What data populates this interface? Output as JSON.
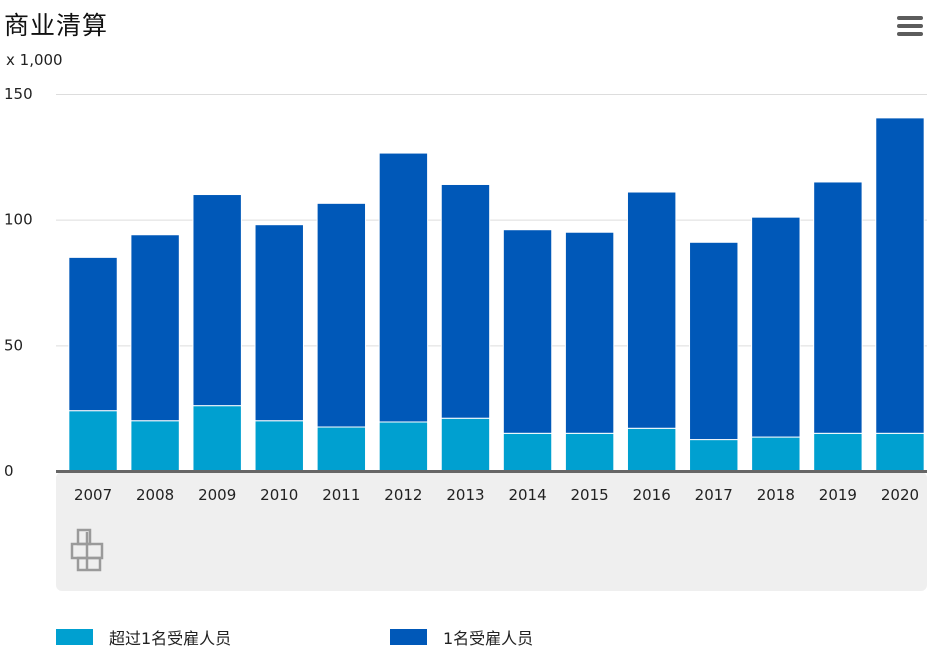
{
  "header": {
    "title": "商业清算",
    "unit": "x 1,000",
    "menu_icon": "hamburger-menu-icon"
  },
  "colors": {
    "series_small": "#00a0d0",
    "series_large": "#0058b8",
    "axis": "#666666",
    "grid": "#dddddd",
    "panel": "#efefef",
    "logo": "#9a9a9a"
  },
  "logo_icon": "cbs-logo-icon",
  "chart_data": {
    "type": "bar",
    "stacked": true,
    "title": "商业清算",
    "unit": "x 1,000",
    "categories": [
      "2007",
      "2008",
      "2009",
      "2010",
      "2011",
      "2012",
      "2013",
      "2014",
      "2015",
      "2016",
      "2017",
      "2018",
      "2019",
      "2020"
    ],
    "series": [
      {
        "name": "超过1名受雇人员",
        "color": "#00a0d0",
        "values": [
          24,
          20,
          26,
          20,
          17.5,
          19.5,
          21,
          15,
          15,
          17,
          12.5,
          13.5,
          15,
          15
        ]
      },
      {
        "name": "1名受雇人员",
        "color": "#0058b8",
        "values": [
          61,
          74,
          84,
          78,
          89,
          107,
          93,
          81,
          80,
          94,
          78.5,
          87.5,
          100,
          125.5
        ]
      }
    ],
    "yticks": [
      "0",
      "50",
      "100",
      "150"
    ],
    "ylim": [
      0,
      150
    ],
    "grid": true,
    "legend_position": "bottom"
  }
}
